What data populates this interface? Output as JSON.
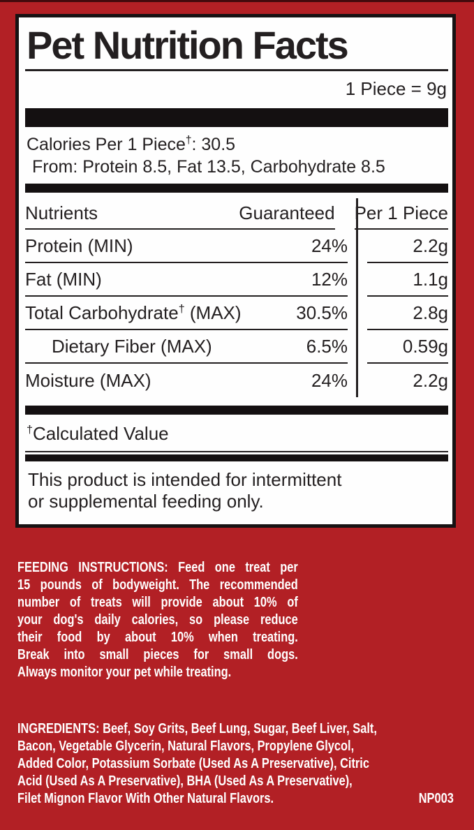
{
  "label": {
    "title": "Pet Nutrition Facts",
    "serving_size": "1 Piece = 9g",
    "calories": {
      "prefix": "Calories Per 1 Piece",
      "dagger": "†",
      "value_suffix": ": 30.5",
      "from_line": "From: Protein 8.5, Fat 13.5, Carbohydrate 8.5"
    },
    "table": {
      "headers": {
        "nutrients": "Nutrients",
        "guaranteed": "Guaranteed",
        "per_piece": "Per 1 Piece"
      },
      "rows": [
        {
          "name": "Protein (MIN)",
          "dagger": "",
          "name_suffix": "",
          "guaranteed": "24%",
          "per_piece": "2.2g"
        },
        {
          "name": "Fat (MIN)",
          "dagger": "",
          "name_suffix": "",
          "guaranteed": "12%",
          "per_piece": "1.1g"
        },
        {
          "name": "Total Carbohydrate",
          "dagger": "†",
          "name_suffix": " (MAX)",
          "guaranteed": "30.5%",
          "per_piece": "2.8g"
        },
        {
          "name": "Dietary Fiber (MAX)",
          "dagger": "",
          "name_suffix": "",
          "guaranteed": "6.5%",
          "per_piece": "0.59g"
        },
        {
          "name": "Moisture (MAX)",
          "dagger": "",
          "name_suffix": "",
          "guaranteed": "24%",
          "per_piece": "2.2g"
        }
      ]
    },
    "footnote": {
      "dagger": "†",
      "text": "Calculated Value"
    },
    "statement_lines": [
      "This product is intended for intermittent",
      "or supplemental feeding only."
    ]
  },
  "feeding": {
    "lines": [
      "FEEDING INSTRUCTIONS: Feed one treat per",
      "15 pounds of bodyweight. The recommended",
      "number of treats will provide about 10% of",
      "your dog's daily calories, so please reduce",
      "their food by about 10% when treating.",
      "Break into small pieces for small dogs.",
      "Always monitor your pet while treating."
    ]
  },
  "ingredients": {
    "lines": [
      "INGREDIENTS: Beef, Soy Grits, Beef Lung, Sugar, Beef Liver, Salt,",
      "Bacon, Vegetable Glycerin, Natural Flavors, Propylene Glycol,",
      "Added Color, Potassium Sorbate (Used As A Preservative), Citric",
      "Acid (Used As A Preservative), BHA (Used As A Preservative),",
      "Filet Mignon Flavor With Other Natural Flavors."
    ],
    "product_code": "NP003"
  },
  "colors": {
    "background_red": "#B22025",
    "panel_border_black": "#171213",
    "text_black": "#231F20",
    "top_strip": "#420a0d"
  }
}
